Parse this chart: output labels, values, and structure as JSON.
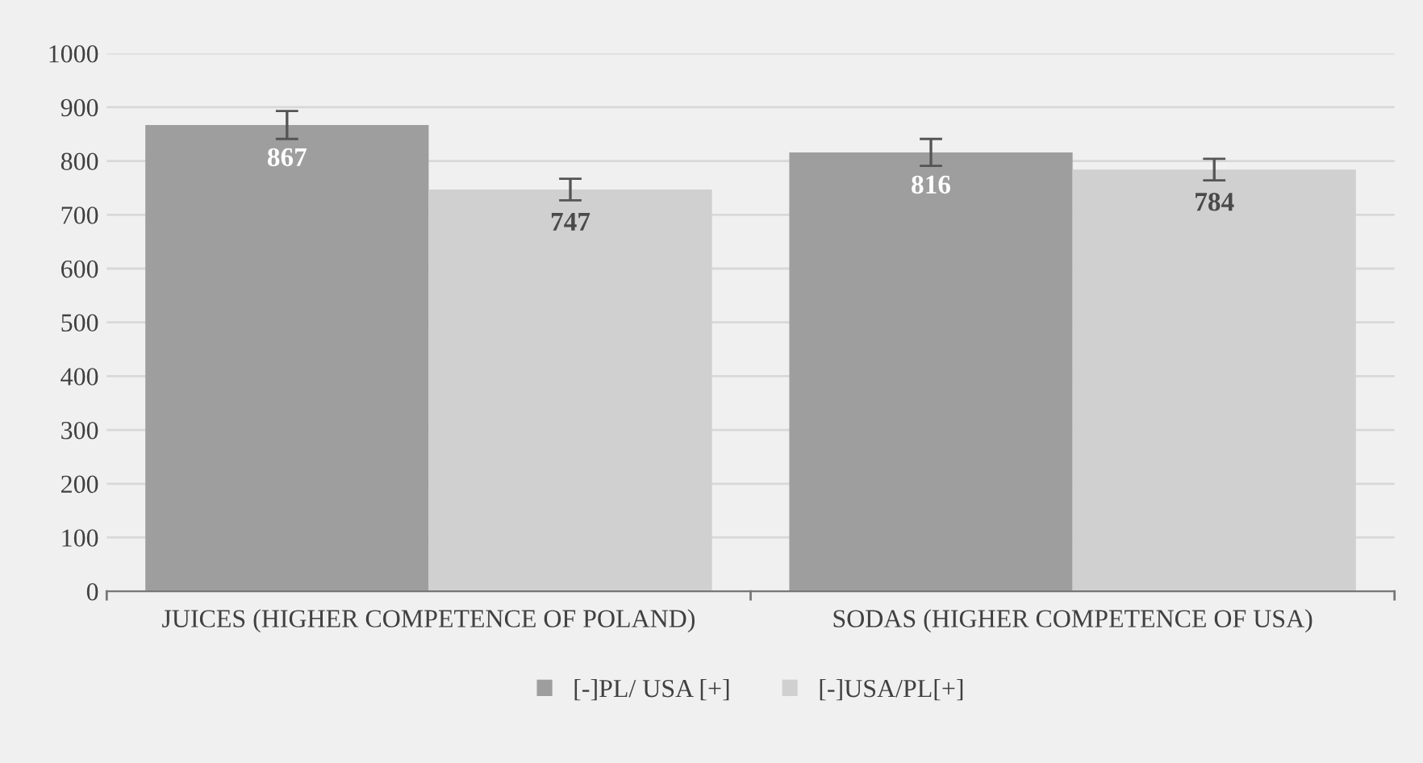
{
  "chart_data": {
    "type": "bar",
    "categories": [
      "JUICES (HIGHER COMPETENCE OF POLAND)",
      "SODAS (HIGHER COMPETENCE OF USA)"
    ],
    "series": [
      {
        "name": "[-]PL/ USA [+]",
        "color": "#9e9e9e",
        "values": [
          867,
          816
        ],
        "errors": [
          26,
          25
        ]
      },
      {
        "name": "[-]USA/PL[+]",
        "color": "#d0d0d0",
        "values": [
          747,
          784
        ],
        "errors": [
          20,
          20
        ]
      }
    ],
    "ylim": [
      0,
      1000
    ],
    "yticks": [
      0,
      100,
      200,
      300,
      400,
      500,
      600,
      700,
      800,
      900,
      1000
    ],
    "grid": "y",
    "legend": "bottom",
    "data_labels": true
  }
}
